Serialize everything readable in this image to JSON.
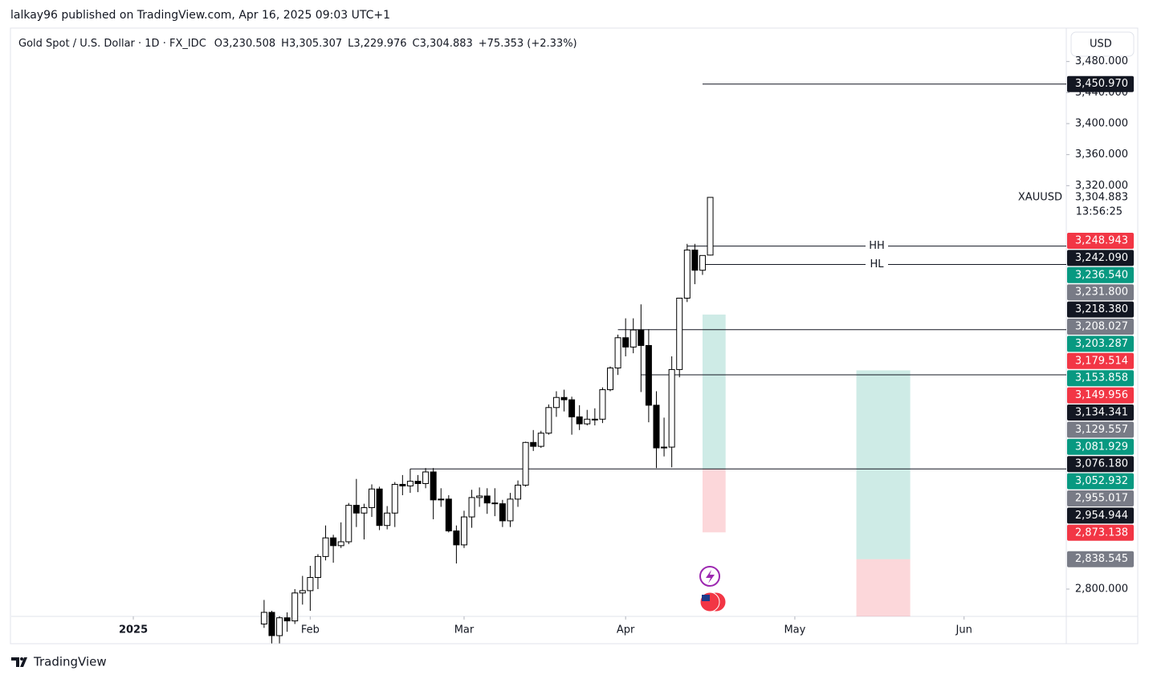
{
  "header": {
    "publisher": "lalkay96 published on TradingView.com, Apr 16, 2025 09:03 UTC+1",
    "footer_brand": "TradingView"
  },
  "chart_data": {
    "type": "candlestick",
    "title": "Gold Spot / U.S. Dollar · 1D · FX_IDC",
    "legend_values": [
      "O3,230.508",
      "H3,305.307",
      "L3,229.976",
      "C3,304.883",
      "+75.353 (+2.33%)"
    ],
    "currency": "USD",
    "symbol_label": "XAUUSD",
    "last_price_label": "3,304.883",
    "countdown": "13:56:25",
    "x": [
      17,
      18,
      19,
      20,
      21,
      22,
      23,
      24,
      25,
      26,
      27,
      28,
      29,
      30,
      31,
      32,
      33,
      34,
      35,
      36,
      37,
      38,
      39,
      40,
      41,
      42,
      43,
      44,
      45,
      46,
      47,
      48,
      49,
      50,
      51,
      52,
      53,
      54,
      55,
      56,
      57,
      58,
      59,
      60,
      61,
      62,
      63,
      64,
      65,
      66,
      67,
      68,
      69,
      70,
      71,
      72,
      73,
      74,
      75
    ],
    "open": [
      2755,
      2770,
      2740,
      2763,
      2759,
      2795,
      2798,
      2815,
      2842,
      2866,
      2856,
      2861,
      2908,
      2898,
      2905,
      2929,
      2882,
      2898,
      2935,
      2933,
      2939,
      2936,
      2951,
      2915,
      2916,
      2875,
      2857,
      2893,
      2918,
      2920,
      2911,
      2910,
      2888,
      2916,
      2934,
      2989,
      2984,
      3001,
      3034,
      3047,
      3044,
      3022,
      3013,
      3019,
      3019,
      3057,
      3085,
      3124,
      3112,
      3134,
      3114,
      3037,
      2982,
      2983,
      3083,
      3175,
      3237,
      3211,
      3230.508
    ],
    "high": [
      2786,
      2772,
      2765,
      2770,
      2800,
      2817,
      2830,
      2845,
      2882,
      2870,
      2886,
      2911,
      2942,
      2910,
      2935,
      2932,
      2907,
      2938,
      2947,
      2955,
      2947,
      2956,
      2956,
      2930,
      2921,
      2882,
      2901,
      2928,
      2931,
      2930,
      2930,
      2915,
      2924,
      2940,
      2990,
      3005,
      3004,
      3038,
      3055,
      3057,
      3048,
      3037,
      3031,
      3033,
      3060,
      3087,
      3128,
      3149,
      3149,
      3167,
      3135,
      3055,
      3021,
      3100,
      3175,
      3245,
      3245,
      3229,
      3305.307
    ],
    "low": [
      2750,
      2730,
      2730,
      2745,
      2755,
      2780,
      2772,
      2800,
      2837,
      2834,
      2853,
      2858,
      2880,
      2864,
      2893,
      2876,
      2877,
      2880,
      2921,
      2924,
      2925,
      2930,
      2890,
      2906,
      2873,
      2833,
      2853,
      2879,
      2906,
      2897,
      2894,
      2880,
      2880,
      2906,
      2932,
      2978,
      2982,
      2999,
      3022,
      3029,
      2999,
      3005,
      3011,
      3011,
      3014,
      3055,
      3076,
      3100,
      3104,
      3054,
      3015,
      2956,
      2971,
      2957,
      3073,
      3170,
      3193,
      3205,
      3229.976
    ],
    "close": [
      2770,
      2740,
      2763,
      2759,
      2795,
      2798,
      2815,
      2842,
      2866,
      2856,
      2861,
      2908,
      2898,
      2905,
      2929,
      2882,
      2898,
      2935,
      2933,
      2939,
      2936,
      2951,
      2915,
      2916,
      2875,
      2857,
      2893,
      2918,
      2920,
      2911,
      2910,
      2888,
      2916,
      2934,
      2989,
      2984,
      3001,
      3034,
      3047,
      3044,
      3022,
      3013,
      3019,
      3019,
      3057,
      3085,
      3124,
      3112,
      3134,
      3114,
      3037,
      2982,
      2983,
      3083,
      3175,
      3237,
      3211,
      3230,
      3304.883
    ],
    "xlim": [
      -15.87,
      121.29
    ],
    "xticks": [
      {
        "value": 0,
        "label": "2025"
      },
      {
        "value": 23,
        "label": "Feb"
      },
      {
        "value": 43,
        "label": "Mar"
      },
      {
        "value": 64,
        "label": "Apr"
      },
      {
        "value": 86,
        "label": "May"
      },
      {
        "value": 108,
        "label": "Jun"
      }
    ],
    "ylim": [
      2764.8,
      3523.1
    ],
    "yticks": [
      {
        "value": 3480,
        "label": "3,480.000"
      },
      {
        "value": 3440,
        "label": "3,440.000"
      },
      {
        "value": 3400,
        "label": "3,400.000"
      },
      {
        "value": 3360,
        "label": "3,360.000"
      },
      {
        "value": 3320,
        "label": "3,320.000"
      },
      {
        "value": 2800,
        "label": "2,800.000"
      }
    ],
    "up_color": "#ffffff",
    "down_color": "#000000",
    "lines": [
      {
        "value": 3450.97,
        "x": 74
      },
      {
        "value": 3242.09,
        "x": 72,
        "text": "HH"
      },
      {
        "value": 3218.38,
        "x": 74,
        "text": "HL"
      },
      {
        "value": 3134.341,
        "x": 63
      },
      {
        "value": 3076.18,
        "x": 66
      },
      {
        "value": 2954.944,
        "x": 36
      }
    ],
    "positions": [
      {
        "x": [
          74,
          77
        ],
        "target": 3153.858,
        "entry": 2954.944,
        "stop": 2873.138
      },
      {
        "x": [
          94,
          101
        ],
        "target": 3081.929,
        "entry": 2838.545
      }
    ],
    "price_labels": [
      {
        "value": 3450.97,
        "label": "3,450.970",
        "color": "#131722"
      },
      {
        "value": 3248.943,
        "label": "3,248.943",
        "color": "#f23645"
      },
      {
        "value": 3242.09,
        "label": "3,242.090",
        "color": "#131722"
      },
      {
        "value": 3236.54,
        "label": "3,236.540",
        "color": "#089981"
      },
      {
        "value": 3231.8,
        "label": "3,231.800",
        "color": "#787b86"
      },
      {
        "value": 3218.38,
        "label": "3,218.380",
        "color": "#131722"
      },
      {
        "value": 3208.027,
        "label": "3,208.027",
        "color": "#787b86"
      },
      {
        "value": 3203.287,
        "label": "3,203.287",
        "color": "#089981"
      },
      {
        "value": 3179.514,
        "label": "3,179.514",
        "color": "#f23645"
      },
      {
        "value": 3153.858,
        "label": "3,153.858",
        "color": "#089981"
      },
      {
        "value": 3149.956,
        "label": "3,149.956",
        "color": "#f23645"
      },
      {
        "value": 3134.341,
        "label": "3,134.341",
        "color": "#131722"
      },
      {
        "value": 3129.557,
        "label": "3,129.557",
        "color": "#787b86"
      },
      {
        "value": 3081.929,
        "label": "3,081.929",
        "color": "#089981"
      },
      {
        "value": 3076.18,
        "label": "3,076.180",
        "color": "#131722"
      },
      {
        "value": 3052.932,
        "label": "3,052.932",
        "color": "#089981"
      },
      {
        "value": 2955.017,
        "label": "2,955.017",
        "color": "#787b86"
      },
      {
        "value": 2954.944,
        "label": "2,954.944",
        "color": "#131722"
      },
      {
        "value": 2873.138,
        "label": "2,873.138",
        "color": "#f23645"
      },
      {
        "value": 2838.545,
        "label": "2,838.545",
        "color": "#787b86"
      }
    ]
  }
}
